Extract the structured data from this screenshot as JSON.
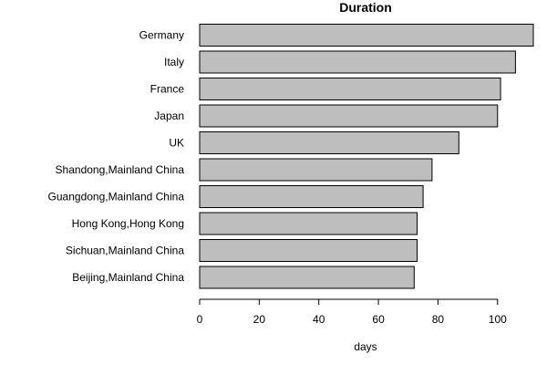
{
  "chart_data": {
    "type": "bar",
    "orientation": "horizontal",
    "title": "Duration",
    "xlabel": "days",
    "ylabel": "",
    "categories": [
      "Germany",
      "Italy",
      "France",
      "Japan",
      "UK",
      "Shandong,Mainland China",
      "Guangdong,Mainland China",
      "Hong Kong,Hong Kong",
      "Sichuan,Mainland China",
      "Beijing,Mainland China"
    ],
    "values": [
      112,
      106,
      101,
      100,
      87,
      78,
      75,
      73,
      73,
      72
    ],
    "xlim": [
      0,
      112
    ],
    "xticks": [
      0,
      20,
      40,
      60,
      80,
      100
    ],
    "grid": false,
    "bar_color": "#bebebe",
    "bar_edge_color": "#000000"
  }
}
